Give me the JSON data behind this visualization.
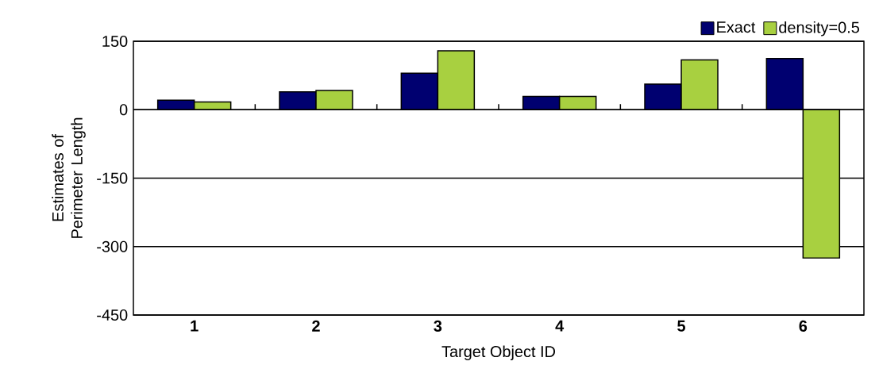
{
  "chart_data": {
    "type": "bar",
    "xlabel": "Target Object ID",
    "ylabel": "Estimates of Perimeter Length",
    "categories": [
      "1",
      "2",
      "3",
      "4",
      "5",
      "6"
    ],
    "series": [
      {
        "name": "Exact",
        "color": "#000070",
        "values": [
          21,
          39,
          80,
          29,
          56,
          112
        ]
      },
      {
        "name": "density=0.5",
        "color": "#a8d040",
        "values": [
          17,
          42,
          129,
          29,
          109,
          -325
        ]
      }
    ],
    "ylim": [
      -450,
      150
    ],
    "yticks": [
      150,
      0,
      -150,
      -300,
      -450
    ],
    "grid": "y",
    "legend": "top right"
  }
}
